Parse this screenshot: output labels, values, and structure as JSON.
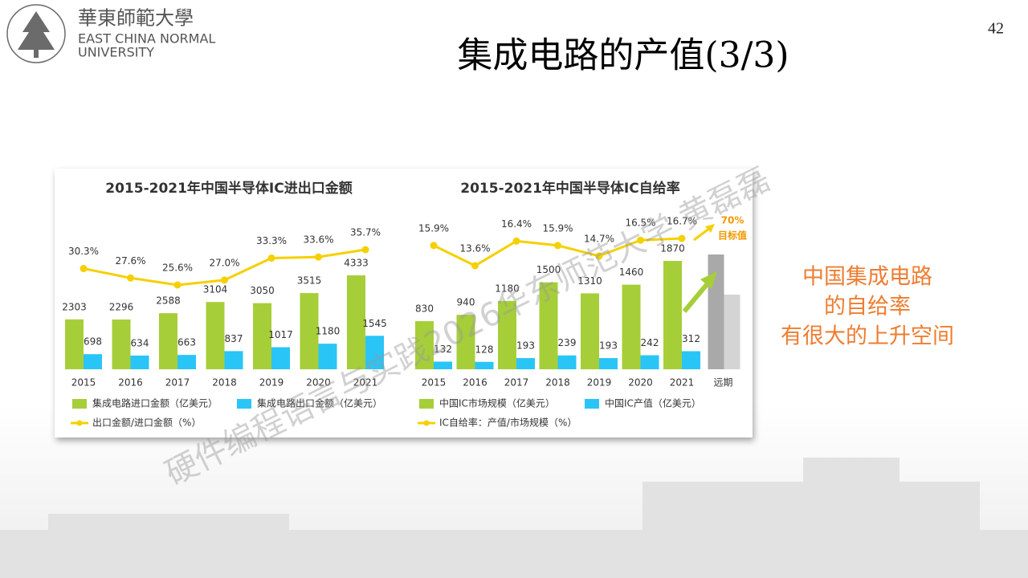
{
  "header": {
    "logo_cn": "華東師範大學",
    "logo_en1": "EAST CHINA NORMAL",
    "logo_en2": "UNIVERSITY",
    "title": "集成电路的产值(3/3)",
    "page": "42"
  },
  "note": [
    "中国集成电路",
    "的自给率",
    "有很大的上升空间"
  ],
  "watermark": "硬件编程语言与实践2026华东师范大学 黄磊磊",
  "chart_data": [
    {
      "type": "bar_line",
      "title": "2015-2021年中国半导体IC进出口金额",
      "categories": [
        "2015",
        "2016",
        "2017",
        "2018",
        "2019",
        "2020",
        "2021"
      ],
      "series": [
        {
          "name": "集成电路进口金额（亿美元）",
          "color": "#a6ce39",
          "values": [
            2303,
            2296,
            2588,
            3104,
            3050,
            3515,
            4333
          ]
        },
        {
          "name": "集成电路出口金额（亿美元）",
          "color": "#29c5f6",
          "values": [
            698,
            634,
            663,
            837,
            1017,
            1180,
            1545
          ]
        },
        {
          "name": "出口金额/进口金额（%）",
          "color": "#f5d000",
          "axis": "y2",
          "values": [
            30.3,
            27.6,
            25.6,
            27.0,
            33.3,
            33.6,
            35.7
          ],
          "value_labels": [
            "30.3%",
            "27.6%",
            "25.6%",
            "27.0%",
            "33.3%",
            "33.6%",
            "35.7%"
          ]
        }
      ]
    },
    {
      "type": "bar_line",
      "title": "2015-2021年中国半导体IC自给率",
      "categories": [
        "2015",
        "2016",
        "2017",
        "2018",
        "2019",
        "2020",
        "2021",
        "远期"
      ],
      "series": [
        {
          "name": "中国IC市场规模（亿美元）",
          "color": "#a6ce39",
          "values": [
            830,
            940,
            1180,
            1500,
            1310,
            1460,
            1870,
            null
          ]
        },
        {
          "name": "中国IC产值（亿美元）",
          "color": "#29c5f6",
          "values": [
            132,
            128,
            193,
            239,
            193,
            242,
            312,
            null
          ]
        },
        {
          "name": "IC自给率：产值/市场规模（%）",
          "color": "#f5d000",
          "axis": "y2",
          "values": [
            15.9,
            13.6,
            16.4,
            15.9,
            14.7,
            16.5,
            16.7,
            null
          ],
          "value_labels": [
            "15.9%",
            "13.6%",
            "16.4%",
            "15.9%",
            "14.7%",
            "16.5%",
            "16.7%",
            null
          ]
        }
      ],
      "annotations": [
        "70%",
        "目标值"
      ]
    }
  ]
}
